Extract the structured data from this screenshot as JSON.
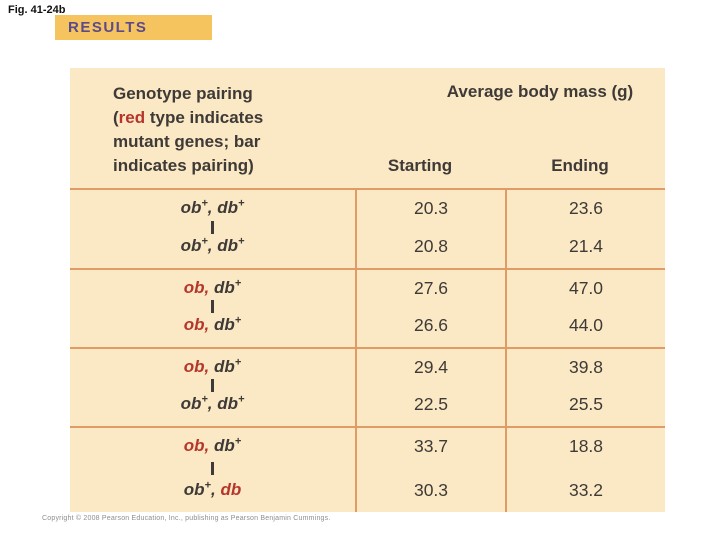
{
  "fig_label": "Fig. 41-24b",
  "results_label": "RESULTS",
  "colors": {
    "table_bg": "#FBE8C4",
    "grid_line": "#DF9C66",
    "mutant_red": "#B5362C",
    "text_dark": "#3E3A37",
    "results_bg": "#F6C45F",
    "results_text": "#5B4A8C"
  },
  "table": {
    "header": {
      "genotype_lines": [
        [
          {
            "t": "Genotype pairing"
          }
        ],
        [
          {
            "t": "("
          },
          {
            "t": "red",
            "red": true
          },
          {
            "t": " type indicates"
          }
        ],
        [
          {
            "t": "mutant genes; bar"
          }
        ],
        [
          {
            "t": "indicates pairing)"
          }
        ]
      ],
      "avg_label": "Average body mass (g)",
      "starting_label": "Starting",
      "ending_label": "Ending"
    },
    "rows": [
      {
        "genotype_top": [
          {
            "t": "ob"
          },
          {
            "t": "+",
            "sup": true
          },
          {
            "t": ", db"
          },
          {
            "t": "+",
            "sup": true
          }
        ],
        "genotype_bottom": [
          {
            "t": "ob"
          },
          {
            "t": "+",
            "sup": true
          },
          {
            "t": ", db"
          },
          {
            "t": "+",
            "sup": true
          }
        ],
        "starting": [
          "20.3",
          "20.8"
        ],
        "ending": [
          "23.6",
          "21.4"
        ]
      },
      {
        "genotype_top": [
          {
            "t": "ob,",
            "red": true
          },
          {
            "t": " db"
          },
          {
            "t": "+",
            "sup": true
          }
        ],
        "genotype_bottom": [
          {
            "t": "ob,",
            "red": true
          },
          {
            "t": " db"
          },
          {
            "t": "+",
            "sup": true
          }
        ],
        "starting": [
          "27.6",
          "26.6"
        ],
        "ending": [
          "47.0",
          "44.0"
        ]
      },
      {
        "genotype_top": [
          {
            "t": "ob,",
            "red": true
          },
          {
            "t": " db"
          },
          {
            "t": "+",
            "sup": true
          }
        ],
        "genotype_bottom": [
          {
            "t": "ob"
          },
          {
            "t": "+",
            "sup": true
          },
          {
            "t": ", db"
          },
          {
            "t": "+",
            "sup": true
          }
        ],
        "starting": [
          "29.4",
          "22.5"
        ],
        "ending": [
          "39.8",
          "25.5"
        ]
      },
      {
        "genotype_top": [
          {
            "t": "ob,",
            "red": true
          },
          {
            "t": " db"
          },
          {
            "t": "+",
            "sup": true
          }
        ],
        "genotype_bottom": [
          {
            "t": "ob"
          },
          {
            "t": "+",
            "sup": true
          },
          {
            "t": ", "
          },
          {
            "t": "db",
            "red": true
          }
        ],
        "starting": [
          "33.7",
          "30.3"
        ],
        "ending": [
          "18.8",
          "33.2"
        ]
      }
    ]
  },
  "chart_data": {
    "type": "table",
    "title": "RESULTS",
    "columns": [
      "Genotype pairing",
      "Average body mass (g) Starting",
      "Average body mass (g) Ending"
    ],
    "rows": [
      [
        "ob+, db+ | ob+, db+",
        [
          20.3,
          20.8
        ],
        [
          23.6,
          21.4
        ]
      ],
      [
        "ob, db+ | ob, db+",
        [
          27.6,
          26.6
        ],
        [
          47.0,
          44.0
        ]
      ],
      [
        "ob, db+ | ob+, db+",
        [
          29.4,
          22.5
        ],
        [
          39.8,
          25.5
        ]
      ],
      [
        "ob, db+ | ob+, db",
        [
          33.7,
          30.3
        ],
        [
          18.8,
          33.2
        ]
      ]
    ],
    "notes": "red type indicates mutant genes; bar indicates pairing"
  },
  "copyright": "Copyright © 2008 Pearson Education, Inc., publishing as Pearson Benjamin Cummings."
}
